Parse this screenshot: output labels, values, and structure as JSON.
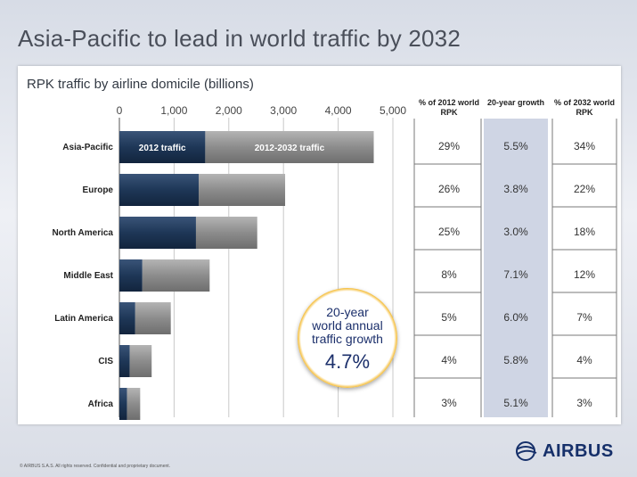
{
  "title": "Asia-Pacific to lead in world traffic by 2032",
  "footer": "© AIRBUS S.A.S. All rights reserved. Confidential and proprietary document.",
  "logo_text": "AIRBUS",
  "badge": {
    "text_lines": [
      "20-year",
      "world annual",
      "traffic growth"
    ],
    "value": "4.7%"
  },
  "colors": {
    "bar_2012": "#1e3757",
    "bar_growth": "#8c8c8c",
    "growth_column_bg": "#cfd5e4",
    "badge_ring": "#f09a10",
    "text_navy": "#1b2f6b"
  },
  "table": {
    "headers": [
      "% of 2012 world RPK",
      "20-year growth",
      "% of 2032 world RPK"
    ]
  },
  "chart_data": {
    "type": "bar",
    "orientation": "horizontal",
    "stacked": true,
    "title": "RPK traffic by airline domicile (billions)",
    "categories": [
      "Asia-Pacific",
      "Europe",
      "North America",
      "Middle East",
      "Latin America",
      "CIS",
      "Africa"
    ],
    "series": [
      {
        "name": "2012 traffic",
        "values": [
          1570,
          1450,
          1400,
          420,
          290,
          190,
          140
        ]
      },
      {
        "name": "2012-2032 traffic",
        "values": [
          3080,
          1580,
          1120,
          1230,
          650,
          400,
          240
        ]
      }
    ],
    "xlim": [
      0,
      5000
    ],
    "xticks": [
      "0",
      "1,000",
      "2,000",
      "3,000",
      "4,000",
      "5,000"
    ],
    "grid": true,
    "table_columns": {
      "share_2012": [
        "29%",
        "26%",
        "25%",
        "8%",
        "5%",
        "4%",
        "3%"
      ],
      "growth_20yr": [
        "5.5%",
        "3.8%",
        "3.0%",
        "7.1%",
        "6.0%",
        "5.8%",
        "5.1%"
      ],
      "share_2032": [
        "34%",
        "22%",
        "18%",
        "12%",
        "7%",
        "4%",
        "3%"
      ]
    }
  }
}
